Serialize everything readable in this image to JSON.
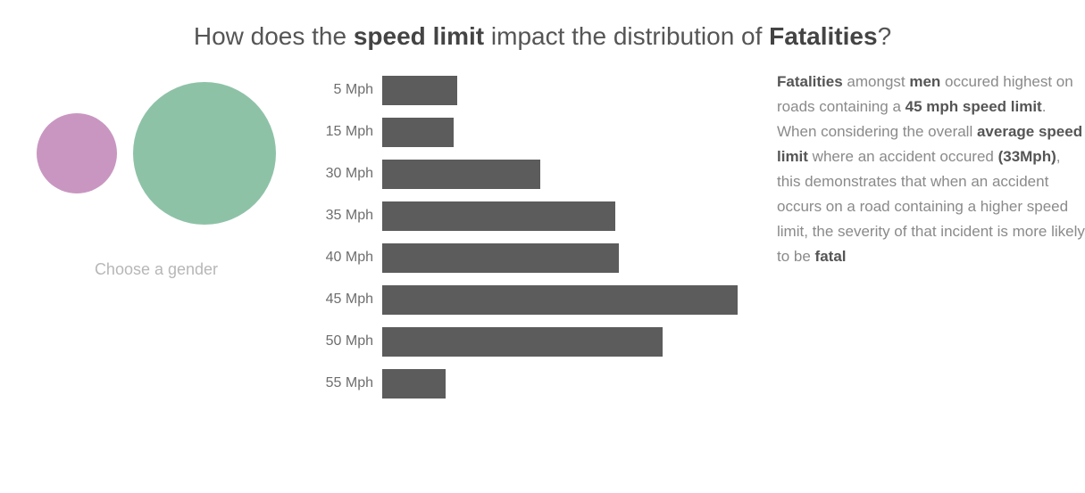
{
  "title": {
    "pre": "How does the ",
    "b1": "speed limit",
    "mid": " impact the distribution of ",
    "b2": "Fatalities",
    "post": "?"
  },
  "circles": {
    "caption": "Choose a gender",
    "items": [
      {
        "name": "female-circle",
        "diameter": 90,
        "color": "#c996c1"
      },
      {
        "name": "male-circle",
        "diameter": 160,
        "color": "#8ec2a7"
      }
    ]
  },
  "chart": {
    "type": "bar",
    "bar_color": "#5c5c5c",
    "max_value": 100,
    "bars": [
      {
        "label": "5 Mph",
        "value": 19
      },
      {
        "label": "15 Mph",
        "value": 18
      },
      {
        "label": "30 Mph",
        "value": 40
      },
      {
        "label": "35 Mph",
        "value": 59
      },
      {
        "label": "40 Mph",
        "value": 60
      },
      {
        "label": "45 Mph",
        "value": 90
      },
      {
        "label": "50 Mph",
        "value": 71
      },
      {
        "label": "55 Mph",
        "value": 16
      }
    ]
  },
  "desc": {
    "s0b": "Fatalities",
    "s1": " amongst ",
    "s1b": "men",
    "s2": " occured highest on roads containing a ",
    "s2b": "45 mph speed limit",
    "s3": ". When considering the overall ",
    "s3b": "average speed limit",
    "s4": " where an accident occured ",
    "s4b": "(33Mph)",
    "s5": ", this demonstrates that when an accident occurs on a road containing a higher speed limit, the severity of that incident is more likely to be ",
    "s5b": "fatal"
  }
}
